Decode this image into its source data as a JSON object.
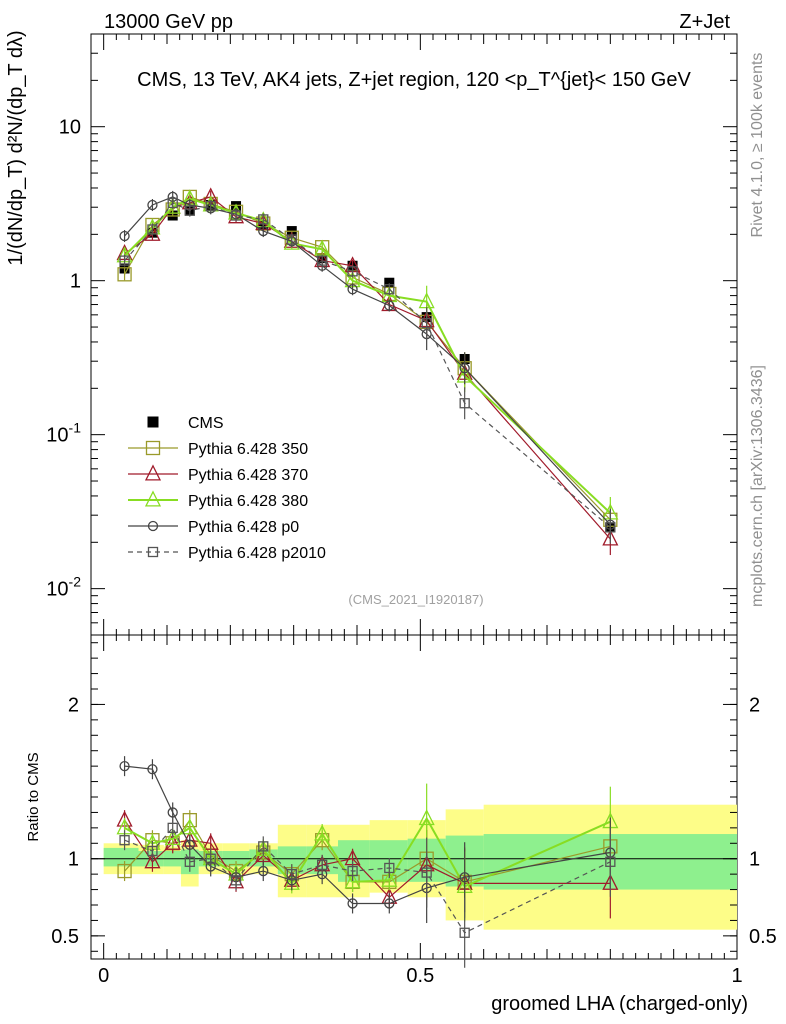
{
  "header": {
    "left": "13000 GeV pp",
    "right": "Z+Jet"
  },
  "side_text": {
    "rivet": "Rivet 4.1.0, ≥ 100k events",
    "mcplots": "mcplots.cern.ch [arXiv:1306.3436]"
  },
  "colors": {
    "cms": "#000000",
    "p350": "#9a9a2a",
    "p370": "#a01b2b",
    "p380": "#88dd22",
    "p0": "#444444",
    "p2010": "#555555",
    "band_inner": "#8ef08e",
    "band_outer": "#fdfd88"
  },
  "chart_data": [
    {
      "type": "line",
      "panel": "main",
      "title": "CMS, 13 TeV, AK4 jets, Z+jet region, 120 <p_T^{jet}< 150 GeV",
      "ylabel": "1/(dN/dp_T) d²N/(dp_T dλ)",
      "yscale": "log",
      "ylim": [
        0.005,
        40
      ],
      "xlim": [
        -0.02,
        1.0
      ],
      "ytick_labels": [
        "10^{-2}",
        "10^{-1}",
        "1",
        "10"
      ],
      "watermark": "(CMS_2021_I1920187)",
      "x": [
        0.033,
        0.077,
        0.109,
        0.136,
        0.169,
        0.209,
        0.252,
        0.297,
        0.345,
        0.393,
        0.451,
        0.51,
        0.57,
        0.8
      ],
      "series": [
        {
          "name": "CMS",
          "values": [
            1.2,
            2.05,
            2.65,
            2.85,
            3.1,
            3.05,
            2.3,
            2.1,
            1.4,
            1.25,
            0.97,
            0.58,
            0.31,
            0.025
          ]
        },
        {
          "name": "Pythia 6.428 350",
          "values": [
            1.1,
            2.3,
            2.9,
            3.5,
            3.15,
            2.8,
            2.35,
            1.9,
            1.65,
            1.05,
            0.82,
            0.54,
            0.27,
            0.028
          ]
        },
        {
          "name": "Pythia 6.428 370",
          "values": [
            1.5,
            2.0,
            3.0,
            3.2,
            3.5,
            2.6,
            2.35,
            1.8,
            1.35,
            1.25,
            0.7,
            0.55,
            0.25,
            0.021
          ]
        },
        {
          "name": "Pythia 6.428 380",
          "values": [
            1.45,
            2.2,
            3.0,
            3.4,
            3.1,
            2.75,
            2.45,
            1.75,
            1.6,
            1.0,
            0.8,
            0.73,
            0.24,
            0.031
          ]
        },
        {
          "name": "Pythia 6.428 p0",
          "values": [
            1.95,
            3.1,
            3.5,
            3.1,
            2.95,
            2.7,
            2.1,
            1.8,
            1.25,
            0.88,
            0.69,
            0.45,
            0.27,
            0.026
          ]
        },
        {
          "name": "Pythia 6.428 p2010",
          "values": [
            1.35,
            2.15,
            3.2,
            2.85,
            3.05,
            2.65,
            2.5,
            1.85,
            1.35,
            1.15,
            0.88,
            0.53,
            0.16,
            0.025
          ]
        }
      ]
    },
    {
      "type": "line",
      "panel": "ratio",
      "ylabel": "Ratio to CMS",
      "xlabel": "groomed LHA (charged-only)",
      "ylim": [
        0.35,
        2.45
      ],
      "xlim": [
        -0.02,
        1.0
      ],
      "ytick_labels": [
        "0.5",
        "1",
        "2"
      ],
      "xtick_labels": [
        "0",
        "0.5",
        "1"
      ],
      "x": [
        0.033,
        0.077,
        0.109,
        0.136,
        0.169,
        0.209,
        0.252,
        0.297,
        0.345,
        0.393,
        0.451,
        0.51,
        0.57,
        0.8
      ],
      "bin_edges": [
        0.0,
        0.055,
        0.095,
        0.122,
        0.15,
        0.188,
        0.23,
        0.275,
        0.32,
        0.37,
        0.42,
        0.48,
        0.54,
        0.6,
        1.0
      ],
      "band_inner": [
        [
          0.95,
          1.07
        ],
        [
          0.95,
          1.05
        ],
        [
          0.95,
          1.05
        ],
        [
          0.9,
          1.06
        ],
        [
          0.95,
          1.05
        ],
        [
          0.95,
          1.05
        ],
        [
          0.95,
          1.06
        ],
        [
          0.9,
          1.08
        ],
        [
          0.9,
          1.08
        ],
        [
          0.85,
          1.12
        ],
        [
          0.85,
          1.12
        ],
        [
          0.85,
          1.13
        ],
        [
          0.82,
          1.15
        ],
        [
          0.8,
          1.16
        ]
      ],
      "band_outer": [
        [
          0.9,
          1.1
        ],
        [
          0.9,
          1.09
        ],
        [
          0.9,
          1.08
        ],
        [
          0.82,
          1.12
        ],
        [
          0.9,
          1.1
        ],
        [
          0.9,
          1.1
        ],
        [
          0.9,
          1.1
        ],
        [
          0.75,
          1.22
        ],
        [
          0.75,
          1.22
        ],
        [
          0.75,
          1.22
        ],
        [
          0.78,
          1.25
        ],
        [
          0.75,
          1.25
        ],
        [
          0.6,
          1.32
        ],
        [
          0.54,
          1.35
        ]
      ],
      "series": [
        {
          "name": "Pythia 6.428 350",
          "values": [
            0.92,
            1.12,
            1.1,
            1.25,
            1.02,
            0.92,
            1.04,
            0.9,
            1.12,
            0.85,
            0.85,
            1.0,
            0.85,
            1.08
          ]
        },
        {
          "name": "Pythia 6.428 370",
          "values": [
            1.25,
            0.98,
            1.1,
            1.12,
            1.1,
            0.85,
            1.02,
            0.86,
            0.96,
            1.0,
            0.75,
            0.96,
            0.84,
            0.84
          ]
        },
        {
          "name": "Pythia 6.428 380",
          "values": [
            1.2,
            1.1,
            1.13,
            1.2,
            1.0,
            0.9,
            1.06,
            0.84,
            1.16,
            0.85,
            0.86,
            1.26,
            0.82,
            1.24
          ]
        },
        {
          "name": "Pythia 6.428 p0",
          "values": [
            1.6,
            1.58,
            1.3,
            1.09,
            0.95,
            0.88,
            0.92,
            0.86,
            0.9,
            0.71,
            0.71,
            0.81,
            0.88,
            1.04
          ]
        },
        {
          "name": "Pythia 6.428 p2010",
          "values": [
            1.12,
            1.05,
            1.2,
            0.98,
            1.0,
            0.86,
            1.08,
            0.9,
            0.96,
            0.92,
            0.94,
            0.91,
            0.52,
            0.98
          ]
        }
      ]
    }
  ]
}
